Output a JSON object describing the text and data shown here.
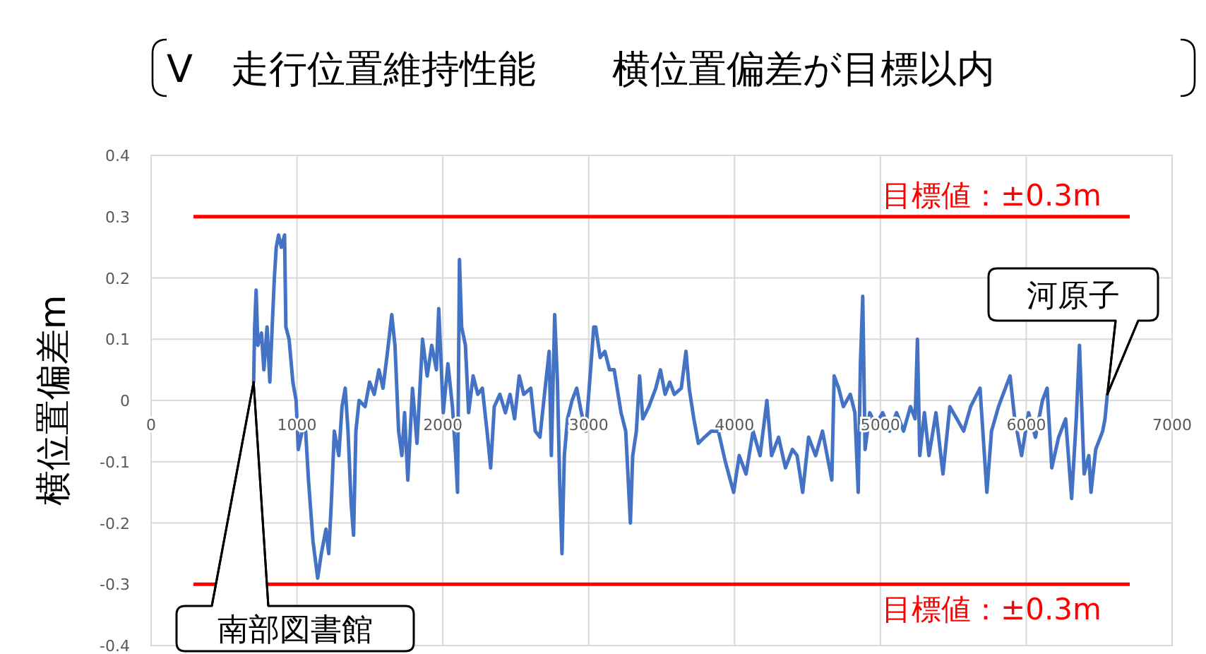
{
  "chart_data": {
    "type": "line",
    "title": "V　走行位置維持性能　　横位置偏差が目標以内",
    "ylabel": "横位置偏差m",
    "xlim": [
      0,
      7000
    ],
    "xticks": [
      0,
      1000,
      2000,
      3000,
      4000,
      5000,
      6000,
      7000
    ],
    "ylim": [
      -0.4,
      0.4
    ],
    "yticks": [
      -0.4,
      -0.3,
      -0.2,
      -0.1,
      0,
      0.1,
      0.2,
      0.3,
      0.4
    ],
    "grid": true,
    "marker": "none",
    "line_style": "solid",
    "series": [
      {
        "color": "#4472c4",
        "x": [
          703,
          710,
          720,
          732,
          757,
          773,
          795,
          814,
          830,
          845,
          858,
          874,
          893,
          915,
          924,
          946,
          972,
          994,
          1009,
          1035,
          1057,
          1079,
          1110,
          1142,
          1167,
          1199,
          1218,
          1237,
          1256,
          1287,
          1309,
          1331,
          1350,
          1372,
          1388,
          1404,
          1426,
          1467,
          1498,
          1530,
          1562,
          1590,
          1621,
          1650,
          1672,
          1697,
          1719,
          1738,
          1760,
          1792,
          1823,
          1861,
          1893,
          1924,
          1956,
          1972,
          2003,
          2035,
          2066,
          2088,
          2101,
          2114,
          2129,
          2155,
          2177,
          2208,
          2240,
          2271,
          2303,
          2328,
          2353,
          2391,
          2429,
          2461,
          2492,
          2524,
          2555,
          2603,
          2634,
          2666,
          2697,
          2729,
          2744,
          2767,
          2786,
          2801,
          2817,
          2833,
          2855,
          2886,
          2918,
          2950,
          2981,
          3013,
          3035,
          3048,
          3079,
          3111,
          3143,
          3175,
          3222,
          3254,
          3286,
          3302,
          3327,
          3349,
          3371,
          3413,
          3460,
          3492,
          3524,
          3556,
          3587,
          3635,
          3667,
          3689,
          3721,
          3752,
          3794,
          3841,
          3889,
          3937,
          3994,
          4032,
          4079,
          4127,
          4175,
          4222,
          4254,
          4302,
          4349,
          4397,
          4429,
          4467,
          4508,
          4556,
          4603,
          4635,
          4667,
          4683,
          4714,
          4746,
          4794,
          4825,
          4848,
          4863,
          4879,
          4895,
          4927,
          4968,
          5016,
          5063,
          5111,
          5159,
          5206,
          5238,
          5254,
          5270,
          5302,
          5333,
          5381,
          5429,
          5476,
          5524,
          5571,
          5619,
          5683,
          5730,
          5762,
          5810,
          5857,
          5889,
          5921,
          5968,
          6016,
          6063,
          6111,
          6143,
          6175,
          6222,
          6270,
          6311,
          6343,
          6365,
          6397,
          6429,
          6444,
          6476,
          6524,
          6540,
          6556
        ],
        "values": [
          0.03,
          0.12,
          0.18,
          0.09,
          0.11,
          0.05,
          0.12,
          0.03,
          0.12,
          0.2,
          0.25,
          0.27,
          0.25,
          0.27,
          0.12,
          0.1,
          0.03,
          0,
          -0.08,
          -0.05,
          -0.04,
          -0.13,
          -0.23,
          -0.29,
          -0.25,
          -0.21,
          -0.25,
          -0.16,
          -0.05,
          -0.09,
          -0.01,
          0.02,
          -0.05,
          -0.17,
          -0.22,
          -0.05,
          0,
          -0.01,
          0.03,
          0.01,
          0.05,
          0.02,
          0.08,
          0.14,
          0.09,
          -0.05,
          -0.09,
          -0.02,
          -0.13,
          0.02,
          -0.07,
          0.1,
          0.04,
          0.09,
          0.05,
          0.15,
          -0.02,
          0.06,
          -0.01,
          -0.09,
          -0.15,
          0.23,
          0.12,
          0.09,
          -0.02,
          0.04,
          0.01,
          0.02,
          -0.05,
          -0.11,
          -0.01,
          0.01,
          -0.02,
          0.01,
          -0.03,
          0.04,
          0.01,
          0.02,
          -0.05,
          -0.06,
          0.01,
          0.08,
          -0.09,
          0.14,
          0.03,
          -0.13,
          -0.25,
          -0.09,
          -0.03,
          0,
          0.02,
          -0.02,
          -0.05,
          0.05,
          0.12,
          0.12,
          0.07,
          0.08,
          0.05,
          0.05,
          -0.02,
          -0.05,
          -0.2,
          -0.09,
          -0.05,
          0.04,
          -0.03,
          -0.01,
          0.02,
          0.05,
          0.01,
          0.03,
          0.01,
          0.02,
          0.08,
          0.02,
          -0.03,
          -0.07,
          -0.06,
          -0.05,
          -0.05,
          -0.1,
          -0.15,
          -0.09,
          -0.12,
          -0.05,
          -0.09,
          0,
          -0.09,
          -0.06,
          -0.11,
          -0.08,
          -0.09,
          -0.15,
          -0.06,
          -0.09,
          -0.05,
          -0.09,
          -0.13,
          0.04,
          0.02,
          -0.01,
          0.01,
          -0.02,
          -0.15,
          0.06,
          0.17,
          -0.08,
          -0.02,
          -0.04,
          -0.02,
          -0.05,
          -0.02,
          -0.05,
          -0.01,
          -0.03,
          0.1,
          -0.09,
          -0.02,
          -0.09,
          -0.02,
          -0.12,
          -0.01,
          -0.03,
          -0.05,
          -0.01,
          0.02,
          -0.15,
          -0.05,
          -0.01,
          0.02,
          0.04,
          -0.03,
          -0.09,
          -0.02,
          -0.06,
          0,
          0.02,
          -0.11,
          -0.06,
          -0.03,
          -0.16,
          -0.03,
          0.09,
          -0.12,
          -0.09,
          -0.15,
          -0.08,
          -0.05,
          -0.03,
          0.01
        ]
      }
    ],
    "ref_lines": [
      {
        "axis": "y",
        "value": 0.3,
        "label": "目標値：±0.3m",
        "color": "#ff0000"
      },
      {
        "axis": "y",
        "value": -0.3,
        "label": "目標値：±0.3m",
        "color": "#ff0000"
      }
    ],
    "annotations": [
      "南部図書館",
      {
        "text": "河原子",
        "x": 6556,
        "y": 0.01
      }
    ]
  }
}
